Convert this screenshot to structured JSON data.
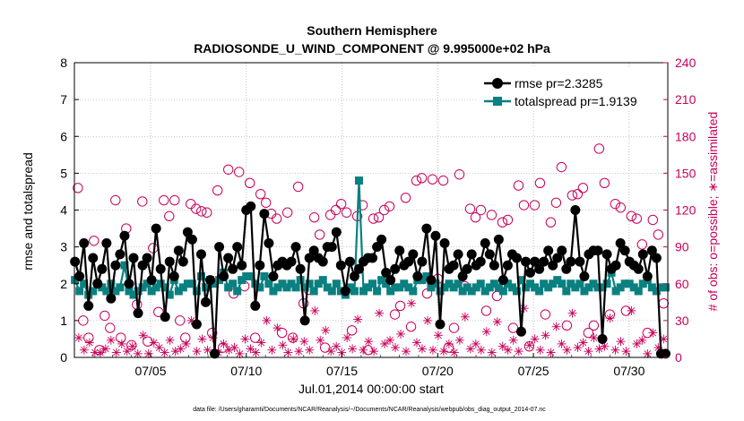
{
  "chart_data": {
    "type": "line",
    "title": "Southern Hemisphere",
    "subtitle": "RADIOSONDE_U_WIND_COMPONENT @ 9.995000e+02 hPa",
    "xlabel": "Jul.01,2014 00:00:00 start",
    "ylabel": "rmse and totalspread",
    "y2label": "# of obs: o=possible; ∗=assimilated",
    "xlim": [
      1,
      32
    ],
    "ylim": [
      0,
      8
    ],
    "y2lim": [
      0,
      240
    ],
    "x_ticks": [
      5,
      10,
      15,
      20,
      25,
      30
    ],
    "x_tick_labels": [
      "07/05",
      "07/10",
      "07/15",
      "07/20",
      "07/25",
      "07/30"
    ],
    "y_ticks": [
      "0",
      "1",
      "2",
      "3",
      "4",
      "5",
      "6",
      "7",
      "8"
    ],
    "y2_ticks": [
      "0",
      "30",
      "60",
      "90",
      "120",
      "150",
      "180",
      "210",
      "240"
    ],
    "grid": "dotted",
    "legend_position": "top-right",
    "series": [
      {
        "name": "rmse",
        "label": "rmse pr=2.3285",
        "color": "#000000",
        "marker": "circle",
        "values": [
          2.6,
          2.2,
          3.1,
          1.4,
          2.7,
          2.0,
          2.4,
          3.1,
          1.6,
          2.5,
          2.8,
          3.3,
          2.0,
          2.7,
          1.2,
          2.5,
          2.7,
          2.1,
          3.5,
          2.4,
          1.1,
          2.6,
          2.2,
          2.9,
          2.6,
          3.4,
          3.2,
          0.9,
          2.8,
          1.5,
          2.1,
          0.1,
          3.0,
          2.2,
          2.7,
          2.4,
          3.0,
          2.5,
          4.0,
          4.1,
          1.4,
          2.5,
          3.9,
          3.1,
          2.2,
          2.5,
          2.6,
          2.5,
          2.6,
          3.0,
          2.4,
          1.0,
          2.7,
          2.9,
          2.7,
          2.6,
          3.0,
          3.0,
          3.4,
          2.5,
          1.8,
          2.6,
          2.2,
          2.4,
          2.6,
          2.7,
          2.7,
          3.0,
          3.2,
          2.3,
          2.1,
          2.4,
          2.9,
          2.5,
          2.6,
          2.8,
          2.2,
          2.6,
          3.5,
          2.1,
          3.3,
          0.9,
          3.1,
          2.4,
          2.5,
          2.8,
          2.2,
          2.4,
          2.8,
          2.5,
          2.6,
          3.1,
          2.8,
          2.5,
          3.2,
          2.1,
          2.5,
          2.8,
          2.7,
          0.7,
          2.6,
          2.3,
          2.6,
          2.4,
          2.6,
          2.9,
          2.5,
          2.7,
          2.9,
          2.4,
          2.6,
          4.0,
          2.6,
          2.2,
          2.8,
          2.9,
          2.9,
          0.5,
          2.8,
          2.4,
          2.5,
          3.1,
          2.9,
          2.6,
          2.5,
          2.4,
          2.8,
          2.2,
          2.9,
          2.7,
          0.1,
          0.1
        ]
      },
      {
        "name": "totalspread",
        "label": "totalspread pr=1.9139",
        "color": "#0a8080",
        "marker": "square",
        "values": [
          2.1,
          1.8,
          2.0,
          1.7,
          1.8,
          2.0,
          1.9,
          1.8,
          2.0,
          1.8,
          1.9,
          2.5,
          1.8,
          1.7,
          1.8,
          1.9,
          2.0,
          1.8,
          1.9,
          2.0,
          1.9,
          1.7,
          2.1,
          1.8,
          1.9,
          2.0,
          2.0,
          1.8,
          2.2,
          1.9,
          2.1,
          2.0,
          2.1,
          2.3,
          1.9,
          2.0,
          1.8,
          2.1,
          2.2,
          2.2,
          2.0,
          1.9,
          2.2,
          2.0,
          1.8,
          1.9,
          2.0,
          1.9,
          2.0,
          1.9,
          2.1,
          1.9,
          2.0,
          1.8,
          2.0,
          2.1,
          1.9,
          1.8,
          2.0,
          1.8,
          1.7,
          1.9,
          1.8,
          4.8,
          1.8,
          1.9,
          2.0,
          1.8,
          2.1,
          2.0,
          1.8,
          1.9,
          1.9,
          2.0,
          1.9,
          1.8,
          2.1,
          2.1,
          2.2,
          1.9,
          2.0,
          1.8,
          1.9,
          2.0,
          1.9,
          2.0,
          1.8,
          1.9,
          1.8,
          1.9,
          2.0,
          1.8,
          1.9,
          2.0,
          1.9,
          1.8,
          2.0,
          1.9,
          1.8,
          2.1,
          1.9,
          2.0,
          1.9,
          1.8,
          2.0,
          1.9,
          2.0,
          2.1,
          2.0,
          1.8,
          2.0,
          1.9,
          2.0,
          1.8,
          1.9,
          2.0,
          1.9,
          1.9,
          2.0,
          2.3,
          1.8,
          1.9,
          2.0,
          2.0,
          1.9,
          1.8,
          2.0,
          2.1,
          1.9,
          1.8,
          1.9,
          1.9
        ]
      }
    ],
    "possible": {
      "name": "# of obs possible",
      "marker": "o",
      "color": "#c8005a",
      "values": [
        138,
        30,
        16,
        95,
        6,
        34,
        24,
        128,
        16,
        105,
        10,
        43,
        127,
        13,
        89,
        37,
        128,
        115,
        128,
        30,
        16,
        125,
        121,
        119,
        118,
        20,
        136,
        8,
        153,
        52,
        151,
        58,
        142,
        16,
        133,
        126,
        117,
        113,
        20,
        118,
        16,
        139,
        44,
        55,
        114,
        100,
        8,
        116,
        120,
        125,
        118,
        22,
        115,
        124,
        6,
        113,
        114,
        120,
        123,
        35,
        42,
        130,
        25,
        144,
        146,
        52,
        145,
        64,
        144,
        8,
        24,
        149,
        58,
        121,
        114,
        120,
        38,
        116,
        50,
        110,
        112,
        24,
        140,
        124,
        9,
        124,
        142,
        35,
        110,
        126,
        155,
        26,
        132,
        133,
        138,
        20,
        26,
        170,
        142,
        35,
        125,
        122,
        38,
        115,
        113,
        92,
        20,
        112,
        100,
        44
      ]
    },
    "assimilated": {
      "name": "# of obs assimilated",
      "marker": "*",
      "color": "#c8005a",
      "values": [
        16,
        6,
        12,
        4,
        4,
        7,
        14,
        4,
        11,
        5,
        9,
        3,
        18,
        3,
        12,
        8,
        4,
        14,
        5,
        7,
        11,
        30,
        5,
        15,
        6,
        16,
        4,
        11,
        6,
        8,
        3,
        15,
        7,
        4,
        12,
        30,
        6,
        24,
        10,
        4,
        15,
        5,
        13,
        6,
        38,
        14,
        22,
        5,
        9,
        4,
        16,
        7,
        31,
        6,
        13,
        5,
        36,
        11,
        14,
        8,
        19,
        5,
        44,
        12,
        7,
        30,
        6,
        18,
        5,
        11,
        4,
        14,
        33,
        7,
        11,
        6,
        21,
        4,
        29,
        9,
        6,
        14,
        5,
        40,
        10,
        15,
        6,
        18,
        4,
        25,
        11,
        6,
        36,
        8,
        12,
        5,
        16,
        7,
        9,
        32,
        6,
        13,
        5,
        38,
        11,
        14,
        3,
        20,
        8,
        15
      ]
    }
  },
  "footer": "data file: /Users/gharamti/Documents/NCAR/Reanalysis/~/Documents/NCAR/Reanalysis/webpub/obs_diag_output_2014-07.nc"
}
